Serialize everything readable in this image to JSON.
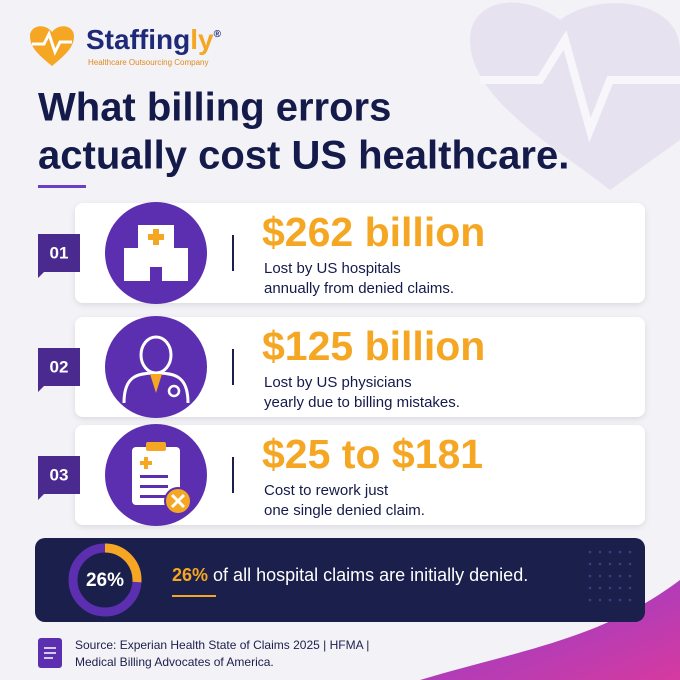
{
  "logo": {
    "brand": "Staffing",
    "brand_accent": "ly",
    "registered": "®",
    "tagline": "Healthcare Outsourcing Company"
  },
  "title": [
    "What billing errors",
    "actually cost US healthcare."
  ],
  "items": [
    {
      "number": "01",
      "amount": "$262 billion",
      "description": [
        "Lost by US hospitals",
        "annually from denied claims."
      ]
    },
    {
      "number": "02",
      "amount": "$125 billion",
      "description": [
        "Lost by US physicians",
        "yearly due to billing mistakes."
      ]
    },
    {
      "number": "03",
      "amount": "$25 to $181",
      "description": [
        "Cost to rework just",
        "one single denied claim."
      ]
    }
  ],
  "stat": {
    "value": 26,
    "label": "26%",
    "highlight": "26%",
    "text": "of all hospital claims are initially denied."
  },
  "source": [
    "Source: Experian Health State of Claims 2025 | HFMA |",
    "Medical Billing Advocates of America."
  ]
}
